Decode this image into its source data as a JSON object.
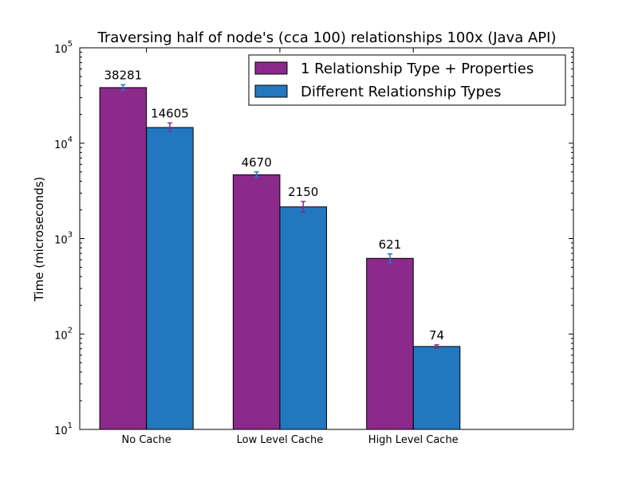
{
  "chart_data": {
    "type": "bar",
    "title": "Traversing half of node's (cca 100) relationships 100x (Java API)",
    "xlabel": "",
    "ylabel": "Time (microseconds)",
    "yscale": "log",
    "ylim": [
      10,
      100000
    ],
    "yticks": [
      {
        "value": 10,
        "base": "10",
        "exp": "1"
      },
      {
        "value": 100,
        "base": "10",
        "exp": "2"
      },
      {
        "value": 1000,
        "base": "10",
        "exp": "3"
      },
      {
        "value": 10000,
        "base": "10",
        "exp": "4"
      },
      {
        "value": 100000,
        "base": "10",
        "exp": "5"
      }
    ],
    "categories": [
      "No Cache",
      "Low Level Cache",
      "High Level Cache"
    ],
    "series": [
      {
        "name": "1 Relationship Type + Properties",
        "color": "#8b2a8b",
        "error_color": "#1f77c4",
        "values": [
          38281,
          4670,
          621
        ],
        "labels": [
          "38281",
          "4670",
          "621"
        ],
        "error_low": [
          36000,
          4400,
          560
        ],
        "error_high": [
          41000,
          5000,
          690
        ]
      },
      {
        "name": "Different Relationship Types",
        "color": "#2277bf",
        "error_color": "#8b2a8b",
        "values": [
          14605,
          2150,
          74
        ],
        "labels": [
          "14605",
          "2150",
          "74"
        ],
        "error_low": [
          13300,
          1900,
          71
        ],
        "error_high": [
          16300,
          2450,
          77
        ]
      }
    ],
    "legend": "top-right",
    "grid": false
  }
}
